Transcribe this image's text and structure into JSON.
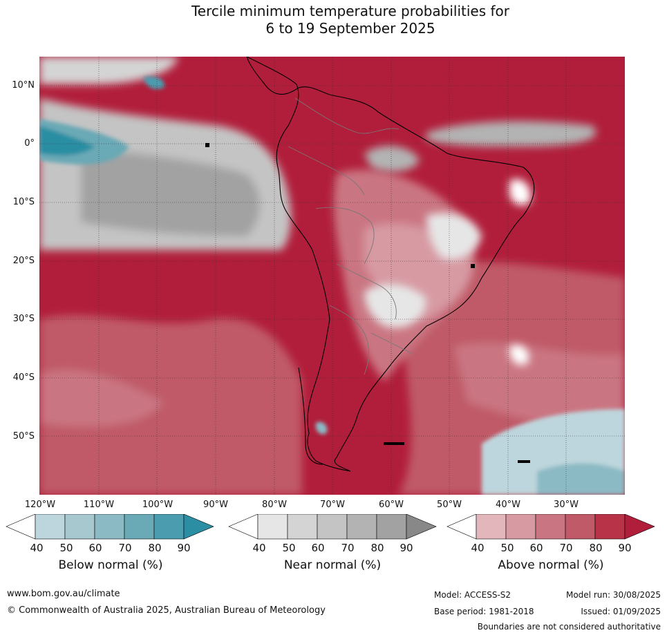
{
  "title": {
    "line1": "Tercile minimum temperature probabilities for",
    "line2": "6 to 19 September 2025"
  },
  "map": {
    "lat_labels": [
      "10°N",
      "0°",
      "10°S",
      "20°S",
      "30°S",
      "40°S",
      "50°S"
    ],
    "lon_labels": [
      "120°W",
      "110°W",
      "100°W",
      "90°W",
      "80°W",
      "70°W",
      "60°W",
      "50°W",
      "40°W",
      "30°W"
    ]
  },
  "legend": {
    "below": {
      "title": "Below normal (%)",
      "ticks": [
        "40",
        "50",
        "60",
        "70",
        "80",
        "90"
      ],
      "colors": [
        "#ffffff",
        "#bdd5dc",
        "#a7c8cf",
        "#8bbac4",
        "#6aa9b6",
        "#4b9caf",
        "#2b8ea3"
      ]
    },
    "near": {
      "title": "Near normal (%)",
      "ticks": [
        "40",
        "50",
        "60",
        "70",
        "80",
        "90"
      ],
      "colors": [
        "#ffffff",
        "#e6e6e6",
        "#d4d4d4",
        "#c4c4c4",
        "#b3b3b3",
        "#a2a2a2",
        "#888888"
      ]
    },
    "above": {
      "title": "Above normal (%)",
      "ticks": [
        "40",
        "50",
        "60",
        "70",
        "80",
        "90"
      ],
      "colors": [
        "#ffffff",
        "#e3b6bc",
        "#d79aa3",
        "#ca7682",
        "#c05a68",
        "#b83248",
        "#b11e3b"
      ]
    }
  },
  "footer": {
    "website": "www.bom.gov.au/climate",
    "copyright": "© Commonwealth of Australia 2025, Australian Bureau of Meteorology",
    "model": "Model: ACCESS-S2",
    "base_period": "Base period: 1981-2018",
    "model_run": "Model run: 30/08/2025",
    "issued": "Issued: 01/09/2025",
    "disclaimer": "Boundaries are not considered authoritative"
  }
}
